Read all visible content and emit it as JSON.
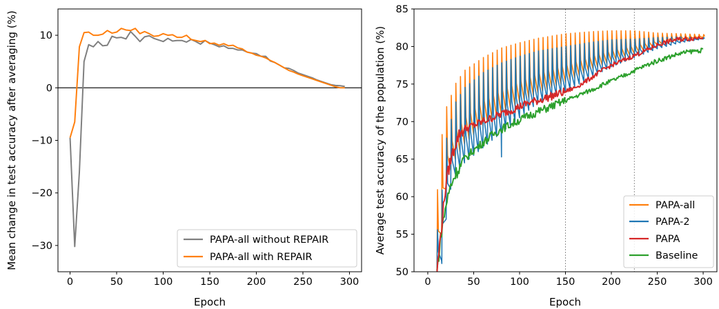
{
  "chart_data": [
    {
      "type": "line",
      "xlabel": "Epoch",
      "ylabel": "Mean change in test accuracy after averaging (%)",
      "xlim": [
        -13,
        313
      ],
      "ylim": [
        -35,
        15
      ],
      "xticks": [
        0,
        50,
        100,
        150,
        200,
        250,
        300
      ],
      "yticks": [
        -30,
        -20,
        -10,
        0,
        10
      ],
      "ytick_labels": [
        "−30",
        "−20",
        "−10",
        "0",
        "10"
      ],
      "hline": 0,
      "legend": "lower-right",
      "series": [
        {
          "name": "PAPA-all without REPAIR",
          "color": "#7f7f7f",
          "points": [
            [
              0,
              -9.5
            ],
            [
              5,
              -30.2
            ],
            [
              10,
              -16
            ],
            [
              15,
              5
            ],
            [
              20,
              8.2
            ],
            [
              25,
              7.8
            ],
            [
              30,
              8.8
            ],
            [
              35,
              8
            ],
            [
              40,
              8.1
            ],
            [
              45,
              9.8
            ],
            [
              50,
              9.5
            ],
            [
              55,
              9.6
            ],
            [
              60,
              9.3
            ],
            [
              65,
              10.7
            ],
            [
              70,
              9.8
            ],
            [
              75,
              8.8
            ],
            [
              80,
              9.7
            ],
            [
              85,
              9.9
            ],
            [
              90,
              9.4
            ],
            [
              95,
              9.1
            ],
            [
              100,
              8.8
            ],
            [
              105,
              9.4
            ],
            [
              110,
              8.9
            ],
            [
              115,
              9
            ],
            [
              120,
              9
            ],
            [
              125,
              8.7
            ],
            [
              130,
              9.2
            ],
            [
              135,
              8.8
            ],
            [
              140,
              8.3
            ],
            [
              145,
              9
            ],
            [
              150,
              8.5
            ],
            [
              155,
              8.2
            ],
            [
              160,
              7.8
            ],
            [
              165,
              8
            ],
            [
              170,
              7.5
            ],
            [
              175,
              7.5
            ],
            [
              180,
              7.2
            ],
            [
              185,
              7.2
            ],
            [
              190,
              6.8
            ],
            [
              195,
              6.6
            ],
            [
              200,
              6.5
            ],
            [
              205,
              6
            ],
            [
              210,
              6
            ],
            [
              215,
              5.1
            ],
            [
              220,
              4.8
            ],
            [
              225,
              4.3
            ],
            [
              230,
              3.8
            ],
            [
              235,
              3.7
            ],
            [
              240,
              3.3
            ],
            [
              245,
              2.8
            ],
            [
              250,
              2.5
            ],
            [
              255,
              2.2
            ],
            [
              260,
              1.9
            ],
            [
              265,
              1.5
            ],
            [
              270,
              1.2
            ],
            [
              275,
              0.9
            ],
            [
              280,
              0.6
            ],
            [
              285,
              0.45
            ],
            [
              290,
              0.4
            ],
            [
              295,
              0.25
            ]
          ]
        },
        {
          "name": "PAPA-all with REPAIR",
          "color": "#ff7f0e",
          "points": [
            [
              0,
              -9.5
            ],
            [
              5,
              -6.5
            ],
            [
              10,
              7.8
            ],
            [
              15,
              10.5
            ],
            [
              20,
              10.6
            ],
            [
              25,
              10
            ],
            [
              30,
              10
            ],
            [
              35,
              10.2
            ],
            [
              40,
              10.9
            ],
            [
              45,
              10.4
            ],
            [
              50,
              10.6
            ],
            [
              55,
              11.3
            ],
            [
              60,
              11
            ],
            [
              65,
              10.9
            ],
            [
              70,
              11.3
            ],
            [
              75,
              10.3
            ],
            [
              80,
              10.7
            ],
            [
              85,
              10.3
            ],
            [
              90,
              9.8
            ],
            [
              95,
              9.9
            ],
            [
              100,
              10.3
            ],
            [
              105,
              10
            ],
            [
              110,
              10.1
            ],
            [
              115,
              9.6
            ],
            [
              120,
              9.6
            ],
            [
              125,
              10
            ],
            [
              130,
              9.2
            ],
            [
              135,
              9
            ],
            [
              140,
              8.8
            ],
            [
              145,
              9
            ],
            [
              150,
              8.4
            ],
            [
              155,
              8.5
            ],
            [
              160,
              8.1
            ],
            [
              165,
              8.4
            ],
            [
              170,
              8
            ],
            [
              175,
              8.1
            ],
            [
              180,
              7.6
            ],
            [
              185,
              7.4
            ],
            [
              190,
              6.8
            ],
            [
              195,
              6.6
            ],
            [
              200,
              6.2
            ],
            [
              205,
              6
            ],
            [
              210,
              5.7
            ],
            [
              215,
              5.2
            ],
            [
              220,
              4.8
            ],
            [
              225,
              4.3
            ],
            [
              230,
              3.8
            ],
            [
              235,
              3.3
            ],
            [
              240,
              3
            ],
            [
              245,
              2.6
            ],
            [
              250,
              2.3
            ],
            [
              255,
              2
            ],
            [
              260,
              1.7
            ],
            [
              265,
              1.4
            ],
            [
              270,
              1.1
            ],
            [
              275,
              0.8
            ],
            [
              280,
              0.5
            ],
            [
              285,
              0.2
            ],
            [
              290,
              0
            ],
            [
              295,
              0
            ]
          ]
        }
      ]
    },
    {
      "type": "line",
      "xlabel": "Epoch",
      "ylabel": "Average test accuracy of the population (%)",
      "xlim": [
        -15,
        315
      ],
      "ylim": [
        50,
        85
      ],
      "xticks": [
        0,
        50,
        100,
        150,
        200,
        250,
        300
      ],
      "yticks": [
        50,
        55,
        60,
        65,
        70,
        75,
        80,
        85
      ],
      "vlines": [
        150,
        225
      ],
      "legend": "lower-right",
      "series": [
        {
          "name": "PAPA-all",
          "color": "#ff7f0e",
          "style": "oscillating",
          "period": 5,
          "start": 10,
          "peaks": [
            [
              10,
              60
            ],
            [
              15,
              67.8
            ],
            [
              20,
              71.8
            ],
            [
              25,
              73.3
            ],
            [
              30,
              75
            ],
            [
              40,
              76.8
            ],
            [
              60,
              78.5
            ],
            [
              80,
              79.8
            ],
            [
              100,
              80.5
            ],
            [
              120,
              81.1
            ],
            [
              150,
              81.7
            ],
            [
              180,
              82
            ],
            [
              200,
              82.1
            ],
            [
              225,
              82.1
            ],
            [
              250,
              81.8
            ],
            [
              275,
              81.7
            ],
            [
              300,
              81.6
            ]
          ],
          "troughs": [
            [
              10,
              50
            ],
            [
              15,
              55
            ],
            [
              20,
              61
            ],
            [
              25,
              63.5
            ],
            [
              30,
              65
            ],
            [
              40,
              67
            ],
            [
              60,
              69.5
            ],
            [
              80,
              71
            ],
            [
              100,
              72.5
            ],
            [
              120,
              73.8
            ],
            [
              150,
              75.2
            ],
            [
              180,
              77
            ],
            [
              200,
              78
            ],
            [
              225,
              79
            ],
            [
              250,
              80.2
            ],
            [
              275,
              80.9
            ],
            [
              300,
              81.2
            ]
          ]
        },
        {
          "name": "PAPA-2",
          "color": "#1f77b4",
          "style": "oscillating",
          "period": 5,
          "start": 10,
          "peaks": [
            [
              10,
              55
            ],
            [
              15,
              60
            ],
            [
              20,
              67.5
            ],
            [
              25,
              70
            ],
            [
              30,
              72.5
            ],
            [
              40,
              74.5
            ],
            [
              60,
              76.5
            ],
            [
              80,
              77.8
            ],
            [
              100,
              78.7
            ],
            [
              120,
              79.4
            ],
            [
              150,
              80
            ],
            [
              180,
              80.6
            ],
            [
              200,
              80.9
            ],
            [
              225,
              81
            ],
            [
              250,
              81.2
            ],
            [
              275,
              81.3
            ],
            [
              300,
              81.2
            ]
          ],
          "troughs": [
            [
              10,
              50
            ],
            [
              15,
              51.5
            ],
            [
              20,
              57
            ],
            [
              25,
              61
            ],
            [
              30,
              63
            ],
            [
              40,
              64.5
            ],
            [
              60,
              66.5
            ],
            [
              80,
              68.5
            ],
            [
              100,
              70.5
            ],
            [
              120,
              72.5
            ],
            [
              150,
              74
            ],
            [
              180,
              76
            ],
            [
              200,
              77.3
            ],
            [
              225,
              78.5
            ],
            [
              250,
              79.7
            ],
            [
              275,
              80.5
            ],
            [
              300,
              81
            ]
          ],
          "outliers": [
            [
              15,
              51.1
            ],
            [
              80,
              65.3
            ]
          ]
        },
        {
          "name": "PAPA",
          "color": "#d62728",
          "style": "noisy",
          "points": [
            [
              10,
              50
            ],
            [
              15,
              56
            ],
            [
              20,
              62
            ],
            [
              25,
              65
            ],
            [
              30,
              67
            ],
            [
              35,
              68.5
            ],
            [
              40,
              69
            ],
            [
              50,
              69.5
            ],
            [
              60,
              70
            ],
            [
              70,
              70.5
            ],
            [
              80,
              71
            ],
            [
              90,
              71.5
            ],
            [
              100,
              72
            ],
            [
              110,
              72.5
            ],
            [
              120,
              72.8
            ],
            [
              130,
              73.2
            ],
            [
              140,
              73.6
            ],
            [
              150,
              74
            ],
            [
              160,
              74.5
            ],
            [
              170,
              75.2
            ],
            [
              180,
              76
            ],
            [
              190,
              76.8
            ],
            [
              200,
              77.5
            ],
            [
              210,
              78
            ],
            [
              225,
              78.8
            ],
            [
              240,
              79.6
            ],
            [
              250,
              80.2
            ],
            [
              260,
              80.6
            ],
            [
              270,
              80.9
            ],
            [
              280,
              81
            ],
            [
              290,
              81.1
            ],
            [
              300,
              81.3
            ]
          ]
        },
        {
          "name": "Baseline",
          "color": "#2ca02c",
          "style": "noisy",
          "points": [
            [
              10,
              50
            ],
            [
              15,
              55.5
            ],
            [
              20,
              59
            ],
            [
              25,
              61.5
            ],
            [
              30,
              63
            ],
            [
              40,
              65
            ],
            [
              50,
              66.2
            ],
            [
              60,
              67.2
            ],
            [
              70,
              68.2
            ],
            [
              80,
              69
            ],
            [
              90,
              69.6
            ],
            [
              100,
              70.2
            ],
            [
              110,
              70.8
            ],
            [
              120,
              71.3
            ],
            [
              130,
              71.8
            ],
            [
              140,
              72.3
            ],
            [
              150,
              72.8
            ],
            [
              160,
              73.3
            ],
            [
              170,
              73.8
            ],
            [
              180,
              74.3
            ],
            [
              190,
              74.9
            ],
            [
              200,
              75.4
            ],
            [
              210,
              75.9
            ],
            [
              225,
              76.8
            ],
            [
              240,
              77.6
            ],
            [
              250,
              78.1
            ],
            [
              260,
              78.5
            ],
            [
              270,
              78.9
            ],
            [
              280,
              79.2
            ],
            [
              290,
              79.4
            ],
            [
              300,
              79.5
            ]
          ]
        }
      ]
    }
  ]
}
